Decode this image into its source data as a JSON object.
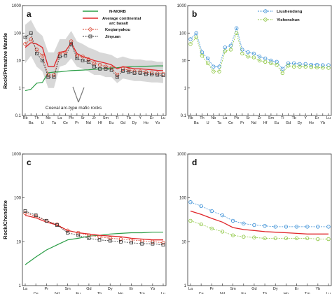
{
  "colors": {
    "nmorb": "#2a9d46",
    "avg_arc": "#e0262a",
    "keqianyakou": "#d9422e",
    "jinyuan": "#333333",
    "liushendong": "#3a8fd6",
    "yishenchun": "#8cc63f",
    "envelope": "#d4d4d4"
  },
  "axis_labels": {
    "top_y": "Rock/Primative Mantle",
    "bottom_y": "Rock/Chondrite"
  },
  "panel_labels": {
    "a": "a",
    "b": "b",
    "c": "c",
    "d": "d"
  },
  "annotation": "Coeval arc-type mafic rocks",
  "chart_data": [
    {
      "panel": "a",
      "type": "line",
      "log_y": true,
      "ylim": [
        0.1,
        1000
      ],
      "y_ticks": [
        "0.1",
        "1",
        "10",
        "100",
        "1000"
      ],
      "categories": [
        "Rb",
        "Ba",
        "Th",
        "U",
        "Nb",
        "Ta",
        "La",
        "Ce",
        "Pb",
        "Pr",
        "Sr",
        "Nd",
        "Zr",
        "Hf",
        "Sm",
        "Eu",
        "Ti",
        "Gd",
        "Tb",
        "Dy",
        "Y",
        "Ho",
        "Er",
        "Yb",
        "Lu"
      ],
      "series": [
        {
          "name": "N-MORB",
          "values": [
            0.8,
            0.9,
            1.5,
            1.6,
            3.6,
            3.8,
            3.9,
            4.1,
            4.3,
            4.4,
            4.5,
            4.6,
            4.8,
            4.9,
            5.1,
            5.4,
            5.5,
            5.8,
            5.9,
            6.0,
            6.1,
            6.2,
            6.3,
            6.4,
            6.4
          ]
        },
        {
          "name": "Average continental arc basalt",
          "values": [
            30,
            45,
            40,
            30,
            6,
            6,
            20,
            22,
            45,
            18,
            14,
            12,
            10,
            9,
            8,
            7,
            5,
            6,
            5.5,
            5,
            5,
            4.8,
            4.6,
            4.4,
            4.3
          ]
        },
        {
          "name": "Keqianyakou",
          "values": [
            40,
            60,
            25,
            15,
            3,
            3,
            18,
            20,
            50,
            15,
            14,
            11,
            8,
            7,
            6,
            5.5,
            3,
            5,
            4.5,
            4,
            4,
            3.8,
            3.6,
            3.4,
            3.3
          ]
        },
        {
          "name": "Jinyuan",
          "values": [
            70,
            100,
            18,
            10,
            2.5,
            2.5,
            14,
            15,
            40,
            12,
            10,
            9,
            6,
            5,
            5,
            4.5,
            2.5,
            4.2,
            3.8,
            3.5,
            3.5,
            3.2,
            3.1,
            3.0,
            2.9
          ]
        }
      ],
      "envelope": {
        "upper": [
          200,
          300,
          120,
          80,
          20,
          20,
          60,
          60,
          120,
          50,
          40,
          30,
          25,
          20,
          18,
          16,
          12,
          14,
          12,
          11,
          11,
          10,
          10,
          9,
          9
        ],
        "lower": [
          8,
          15,
          6,
          4,
          1,
          1,
          6,
          7,
          12,
          6,
          5,
          4,
          3,
          3,
          2.5,
          2.5,
          1.5,
          2.2,
          2.0,
          1.8,
          1.8,
          1.7,
          1.6,
          1.6,
          1.5
        ]
      },
      "legend": [
        "N-MORB",
        "Average continental arc basalt",
        "Keqianyakou",
        "Jinyuan"
      ]
    },
    {
      "panel": "b",
      "type": "line",
      "log_y": true,
      "ylim": [
        0.1,
        1000
      ],
      "y_ticks": [
        "0.1",
        "1",
        "10",
        "100",
        "1000"
      ],
      "categories": [
        "Rb",
        "Ba",
        "Th",
        "U",
        "Nb",
        "Ta",
        "La",
        "Ce",
        "Pb",
        "Pr",
        "Sr",
        "Nd",
        "Zr",
        "Hf",
        "Sm",
        "Eu",
        "Ti",
        "Gd",
        "Tb",
        "Dy",
        "Y",
        "Ho",
        "Er",
        "Yb",
        "Lu"
      ],
      "series": [
        {
          "name": "Liushendong",
          "values": [
            60,
            100,
            20,
            12,
            6,
            6,
            30,
            35,
            150,
            25,
            20,
            18,
            14,
            12,
            10,
            9,
            5,
            8,
            8,
            7.5,
            7.5,
            7,
            7,
            6.8,
            6.8
          ]
        },
        {
          "name": "Yishenchun",
          "values": [
            40,
            70,
            15,
            8,
            4,
            4,
            22,
            25,
            100,
            18,
            14,
            13,
            10,
            9,
            8,
            7,
            3.5,
            6.5,
            6,
            6,
            6,
            5.8,
            5.6,
            5.5,
            5.4
          ]
        }
      ],
      "legend": [
        "Liushendong",
        "Yishenchun"
      ]
    },
    {
      "panel": "c",
      "type": "line",
      "log_y": true,
      "ylim": [
        1,
        1000
      ],
      "y_ticks": [
        "1",
        "10",
        "100",
        "1000"
      ],
      "categories": [
        "La",
        "Ce",
        "Pr",
        "Nd",
        "Sm",
        "Eu",
        "Gd",
        "Tb",
        "Dy",
        "Ho",
        "Er",
        "Tm",
        "Yb",
        "Lu"
      ],
      "series": [
        {
          "name": "N-MORB",
          "values": [
            3.0,
            4.5,
            6.5,
            8.5,
            11,
            12,
            13.5,
            14,
            15,
            15.5,
            16,
            16,
            16.5,
            16.5
          ]
        },
        {
          "name": "Average continental arc basalt",
          "values": [
            40,
            35,
            28,
            24,
            18,
            16,
            15,
            14,
            13.5,
            13,
            12,
            11.5,
            11,
            11
          ]
        },
        {
          "name": "Keqianyakou",
          "values": [
            45,
            38,
            30,
            25,
            18,
            16,
            14,
            13,
            12,
            11.5,
            11,
            10.5,
            10,
            9.5
          ]
        },
        {
          "name": "Jinyuan",
          "values": [
            50,
            40,
            30,
            24,
            16,
            14,
            12,
            11,
            10.5,
            10,
            9.5,
            9,
            9,
            8.5
          ]
        }
      ]
    },
    {
      "panel": "d",
      "type": "line",
      "log_y": true,
      "ylim": [
        1,
        1000
      ],
      "y_ticks": [
        "1",
        "10",
        "100",
        "1000"
      ],
      "categories": [
        "La",
        "Ce",
        "Pr",
        "Nd",
        "Sm",
        "Eu",
        "Gd",
        "Tb",
        "Dy",
        "Ho",
        "Er",
        "Tm",
        "Yb",
        "Lu"
      ],
      "series": [
        {
          "name": "Average continental arc basalt",
          "values": [
            50,
            42,
            34,
            28,
            21,
            19,
            18,
            17,
            16.5,
            16,
            15.5,
            15,
            15,
            15
          ]
        },
        {
          "name": "Liushendong",
          "values": [
            80,
            65,
            50,
            40,
            30,
            26,
            24,
            23,
            22,
            22,
            22,
            22,
            22,
            22
          ]
        },
        {
          "name": "Yishenchun",
          "values": [
            30,
            25,
            20,
            17,
            14,
            13,
            12.5,
            12,
            12,
            12,
            12,
            12,
            11.5,
            11.5
          ]
        }
      ]
    }
  ]
}
